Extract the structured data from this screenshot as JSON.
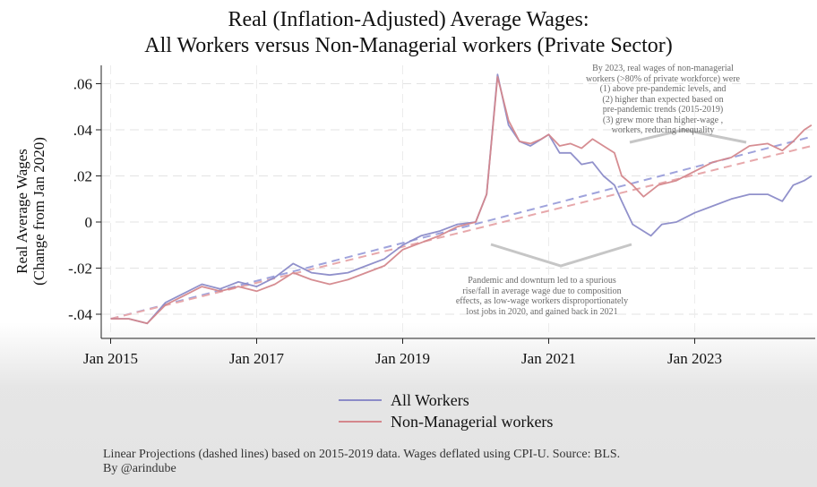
{
  "chart_data": {
    "type": "line",
    "title": "Real (Inflation-Adjusted) Average Wages:",
    "subtitle": "All Workers versus Non-Managerial workers (Private Sector)",
    "ylabel_line1": "Real Average Wages",
    "ylabel_line2": "(Change from Jan 2020)",
    "xlabel": "",
    "x_range": [
      2015.0,
      2024.6
    ],
    "ylim": [
      -0.048,
      0.068
    ],
    "yticks": [
      {
        "value": 0.06,
        "label": ".06"
      },
      {
        "value": 0.04,
        "label": ".04"
      },
      {
        "value": 0.02,
        "label": ".02"
      },
      {
        "value": 0,
        "label": "0"
      },
      {
        "value": -0.02,
        "label": "-.02"
      },
      {
        "value": -0.04,
        "label": "-.04"
      }
    ],
    "xticks": [
      {
        "value": 2015,
        "label": "Jan 2015"
      },
      {
        "value": 2017,
        "label": "Jan 2017"
      },
      {
        "value": 2019,
        "label": "Jan 2019"
      },
      {
        "value": 2021,
        "label": "Jan 2021"
      },
      {
        "value": 2023,
        "label": "Jan 2023"
      }
    ],
    "grid": "dashed",
    "legend_position": "bottom",
    "series": [
      {
        "name": "All Workers",
        "color": "#8b8bc8",
        "points": [
          [
            2015.0,
            -0.042
          ],
          [
            2015.25,
            -0.042
          ],
          [
            2015.5,
            -0.044
          ],
          [
            2015.75,
            -0.035
          ],
          [
            2016.0,
            -0.031
          ],
          [
            2016.25,
            -0.027
          ],
          [
            2016.5,
            -0.029
          ],
          [
            2016.75,
            -0.026
          ],
          [
            2017.0,
            -0.028
          ],
          [
            2017.25,
            -0.024
          ],
          [
            2017.5,
            -0.018
          ],
          [
            2017.75,
            -0.022
          ],
          [
            2018.0,
            -0.023
          ],
          [
            2018.25,
            -0.022
          ],
          [
            2018.5,
            -0.019
          ],
          [
            2018.75,
            -0.016
          ],
          [
            2019.0,
            -0.01
          ],
          [
            2019.25,
            -0.006
          ],
          [
            2019.5,
            -0.004
          ],
          [
            2019.75,
            -0.001
          ],
          [
            2020.0,
            0.0
          ],
          [
            2020.15,
            0.012
          ],
          [
            2020.3,
            0.064
          ],
          [
            2020.45,
            0.042
          ],
          [
            2020.6,
            0.035
          ],
          [
            2020.75,
            0.033
          ],
          [
            2020.9,
            0.036
          ],
          [
            2021.0,
            0.038
          ],
          [
            2021.15,
            0.03
          ],
          [
            2021.3,
            0.03
          ],
          [
            2021.45,
            0.025
          ],
          [
            2021.6,
            0.026
          ],
          [
            2021.75,
            0.02
          ],
          [
            2021.9,
            0.016
          ],
          [
            2022.0,
            0.009
          ],
          [
            2022.15,
            -0.001
          ],
          [
            2022.3,
            -0.004
          ],
          [
            2022.4,
            -0.006
          ],
          [
            2022.55,
            -0.001
          ],
          [
            2022.75,
            0.0
          ],
          [
            2023.0,
            0.004
          ],
          [
            2023.25,
            0.007
          ],
          [
            2023.5,
            0.01
          ],
          [
            2023.75,
            0.012
          ],
          [
            2024.0,
            0.012
          ],
          [
            2024.2,
            0.009
          ],
          [
            2024.35,
            0.016
          ],
          [
            2024.5,
            0.018
          ],
          [
            2024.6,
            0.02
          ]
        ]
      },
      {
        "name": "Non-Managerial workers",
        "color": "#d4878c",
        "points": [
          [
            2015.0,
            -0.042
          ],
          [
            2015.25,
            -0.042
          ],
          [
            2015.5,
            -0.044
          ],
          [
            2015.75,
            -0.036
          ],
          [
            2016.0,
            -0.032
          ],
          [
            2016.25,
            -0.028
          ],
          [
            2016.5,
            -0.03
          ],
          [
            2016.75,
            -0.028
          ],
          [
            2017.0,
            -0.03
          ],
          [
            2017.25,
            -0.027
          ],
          [
            2017.5,
            -0.022
          ],
          [
            2017.75,
            -0.025
          ],
          [
            2018.0,
            -0.027
          ],
          [
            2018.25,
            -0.025
          ],
          [
            2018.5,
            -0.022
          ],
          [
            2018.75,
            -0.019
          ],
          [
            2019.0,
            -0.012
          ],
          [
            2019.25,
            -0.009
          ],
          [
            2019.5,
            -0.006
          ],
          [
            2019.75,
            -0.002
          ],
          [
            2020.0,
            0.0
          ],
          [
            2020.15,
            0.012
          ],
          [
            2020.3,
            0.063
          ],
          [
            2020.45,
            0.044
          ],
          [
            2020.6,
            0.035
          ],
          [
            2020.75,
            0.034
          ],
          [
            2020.9,
            0.036
          ],
          [
            2021.0,
            0.038
          ],
          [
            2021.15,
            0.033
          ],
          [
            2021.3,
            0.034
          ],
          [
            2021.45,
            0.032
          ],
          [
            2021.6,
            0.036
          ],
          [
            2021.75,
            0.033
          ],
          [
            2021.9,
            0.03
          ],
          [
            2022.0,
            0.02
          ],
          [
            2022.15,
            0.016
          ],
          [
            2022.3,
            0.011
          ],
          [
            2022.5,
            0.016
          ],
          [
            2022.75,
            0.018
          ],
          [
            2023.0,
            0.022
          ],
          [
            2023.25,
            0.026
          ],
          [
            2023.5,
            0.028
          ],
          [
            2023.75,
            0.033
          ],
          [
            2024.0,
            0.034
          ],
          [
            2024.2,
            0.031
          ],
          [
            2024.35,
            0.035
          ],
          [
            2024.5,
            0.04
          ],
          [
            2024.6,
            0.042
          ]
        ]
      }
    ],
    "projections": [
      {
        "of": "All Workers",
        "color": "#9fa3dc",
        "x": [
          2015.0,
          2024.6
        ],
        "y": [
          -0.042,
          0.037
        ]
      },
      {
        "of": "Non-Managerial workers",
        "color": "#e7a8ab",
        "x": [
          2015.0,
          2024.6
        ],
        "y": [
          -0.042,
          0.033
        ]
      }
    ]
  },
  "annotations": {
    "top": [
      "By 2023, real wages of non-managerial",
      "workers (>80% of private workforce) were",
      "(1) above pre-pandemic levels, and",
      "(2) higher than expected based on",
      "pre-pandemic trends (2015-2019)",
      "(3) grew more than higher-wage ,",
      "workers, reducing inequality"
    ],
    "bottom": [
      "Pandemic and downturn led to a spurious",
      "rise/fall in average wage due to composition",
      "effects, as low-wage workers disproportionately",
      "lost jobs in 2020, and gained back in 2021"
    ]
  },
  "footnote": {
    "line1": "Linear Projections (dashed lines) based on 2015-2019 data. Wages deflated using CPI-U. Source: BLS.",
    "line2": "By @arindube"
  }
}
